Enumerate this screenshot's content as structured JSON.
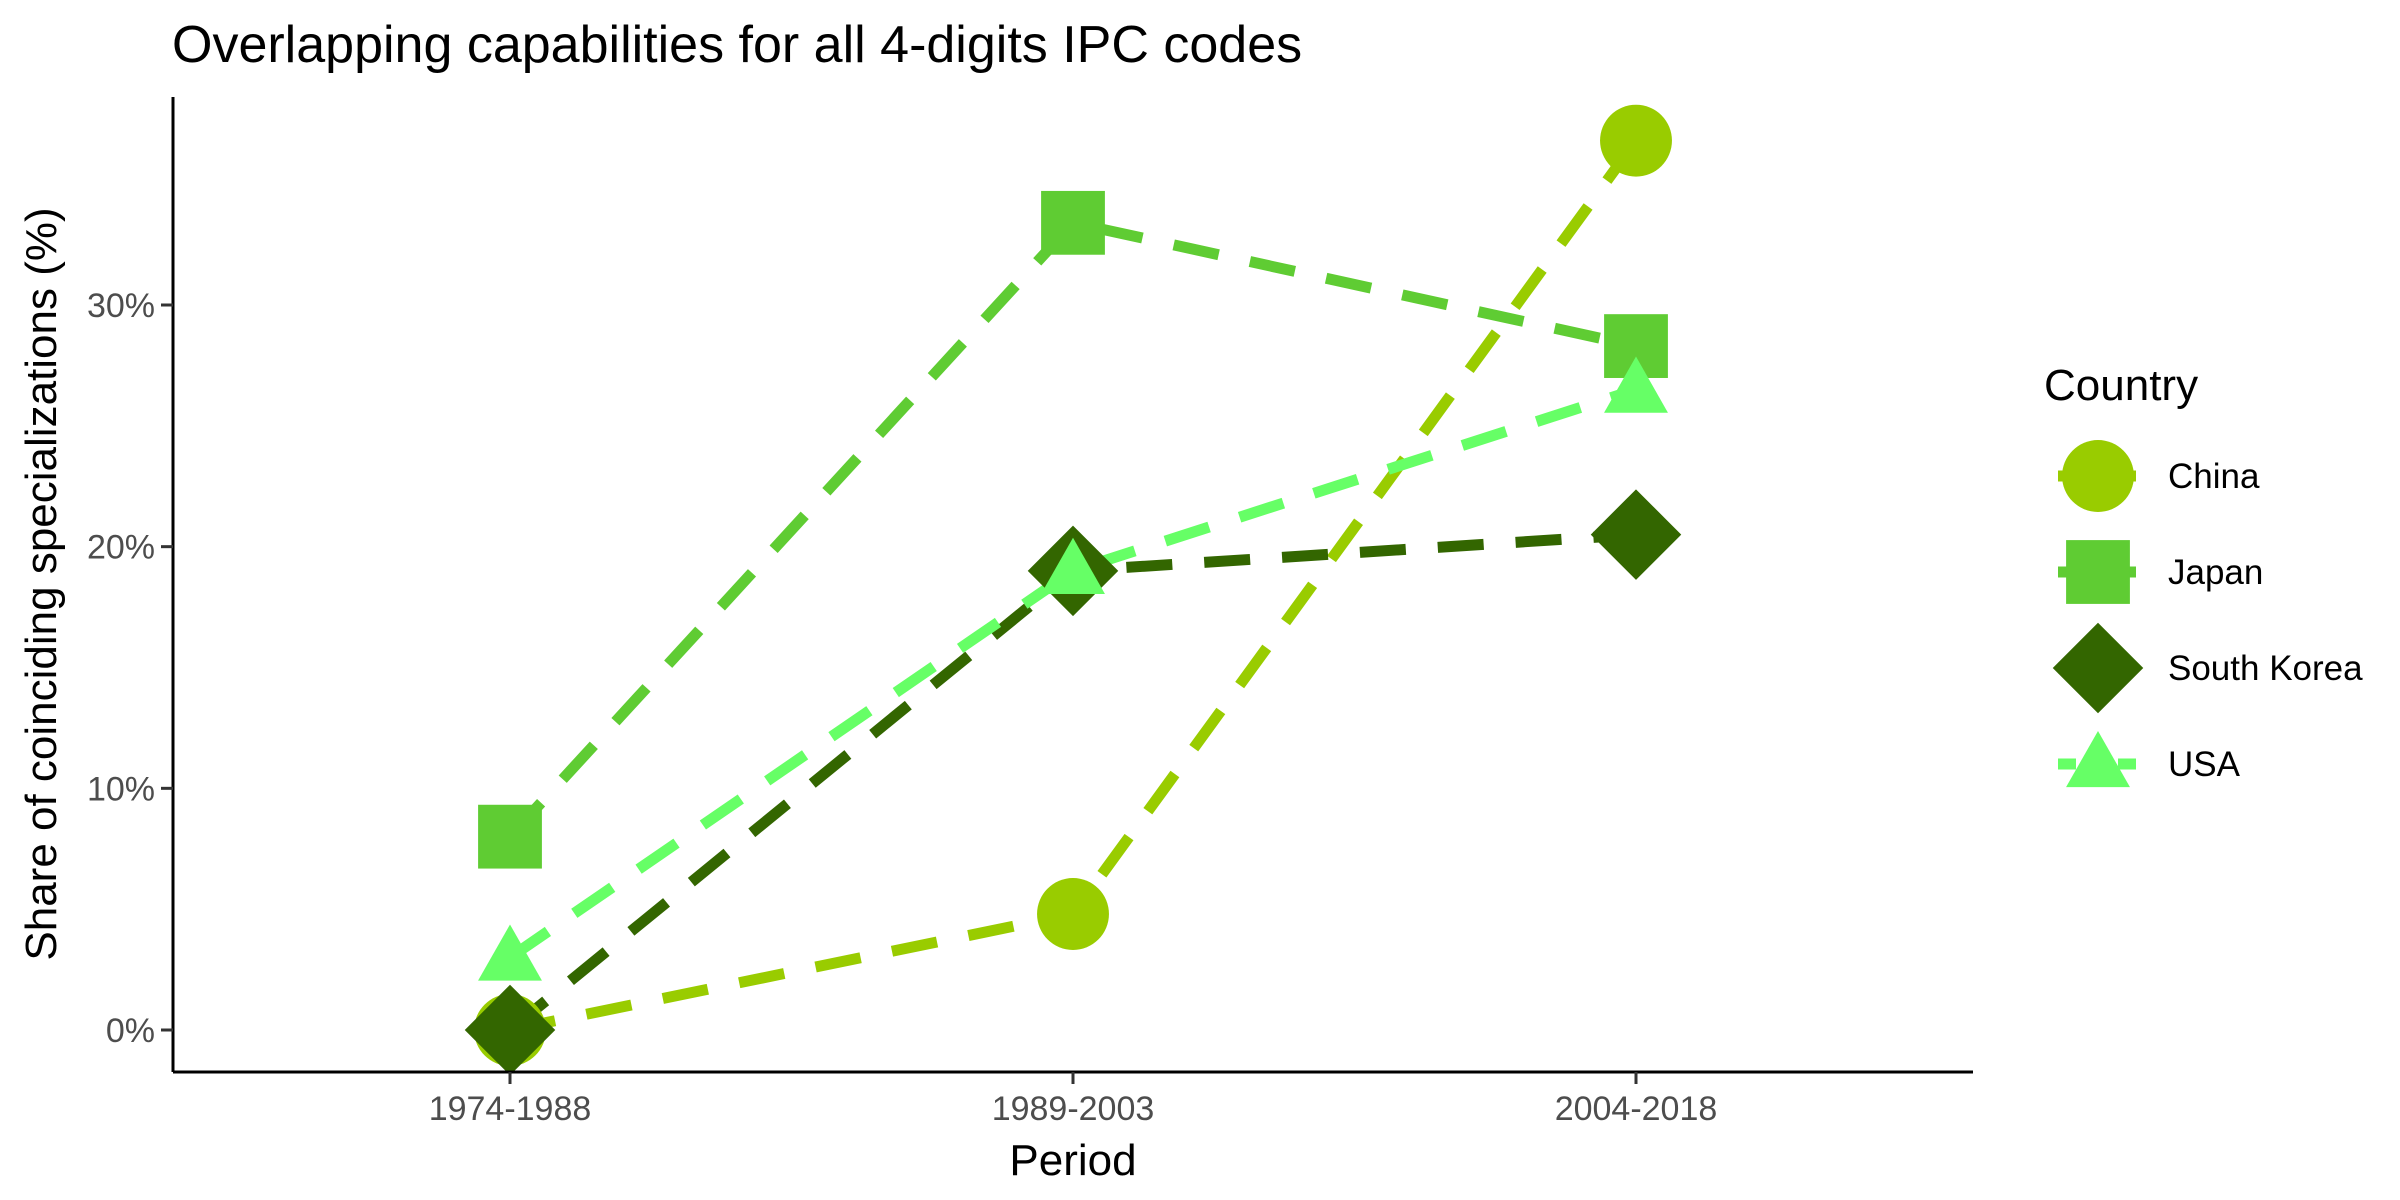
{
  "chart_data": {
    "type": "line",
    "title": "Overlapping capabilities for all 4-digits IPC codes",
    "xlabel": "Period",
    "ylabel": "Share of coinciding specializations (%)",
    "categories": [
      "1974-1988",
      "1989-2003",
      "2004-2018"
    ],
    "y_ticks": [
      0,
      10,
      20,
      30
    ],
    "y_tick_labels": [
      "0%",
      "10%",
      "20%",
      "30%"
    ],
    "ylim": [
      -1.8,
      38.5
    ],
    "grid": false,
    "legend": {
      "title": "Country",
      "position": "right"
    },
    "series": [
      {
        "name": "China",
        "values": [
          0.0,
          4.8,
          36.8
        ],
        "color": "#99CC00",
        "marker": "circle"
      },
      {
        "name": "Japan",
        "values": [
          8.0,
          33.4,
          28.3
        ],
        "color": "#5FCC33",
        "marker": "square"
      },
      {
        "name": "South Korea",
        "values": [
          0.0,
          19.0,
          20.5
        ],
        "color": "#336600",
        "marker": "diamond"
      },
      {
        "name": "USA",
        "values": [
          3.0,
          19.0,
          26.5
        ],
        "color": "#66FF66",
        "marker": "triangle"
      }
    ],
    "line_style": "dashed"
  }
}
